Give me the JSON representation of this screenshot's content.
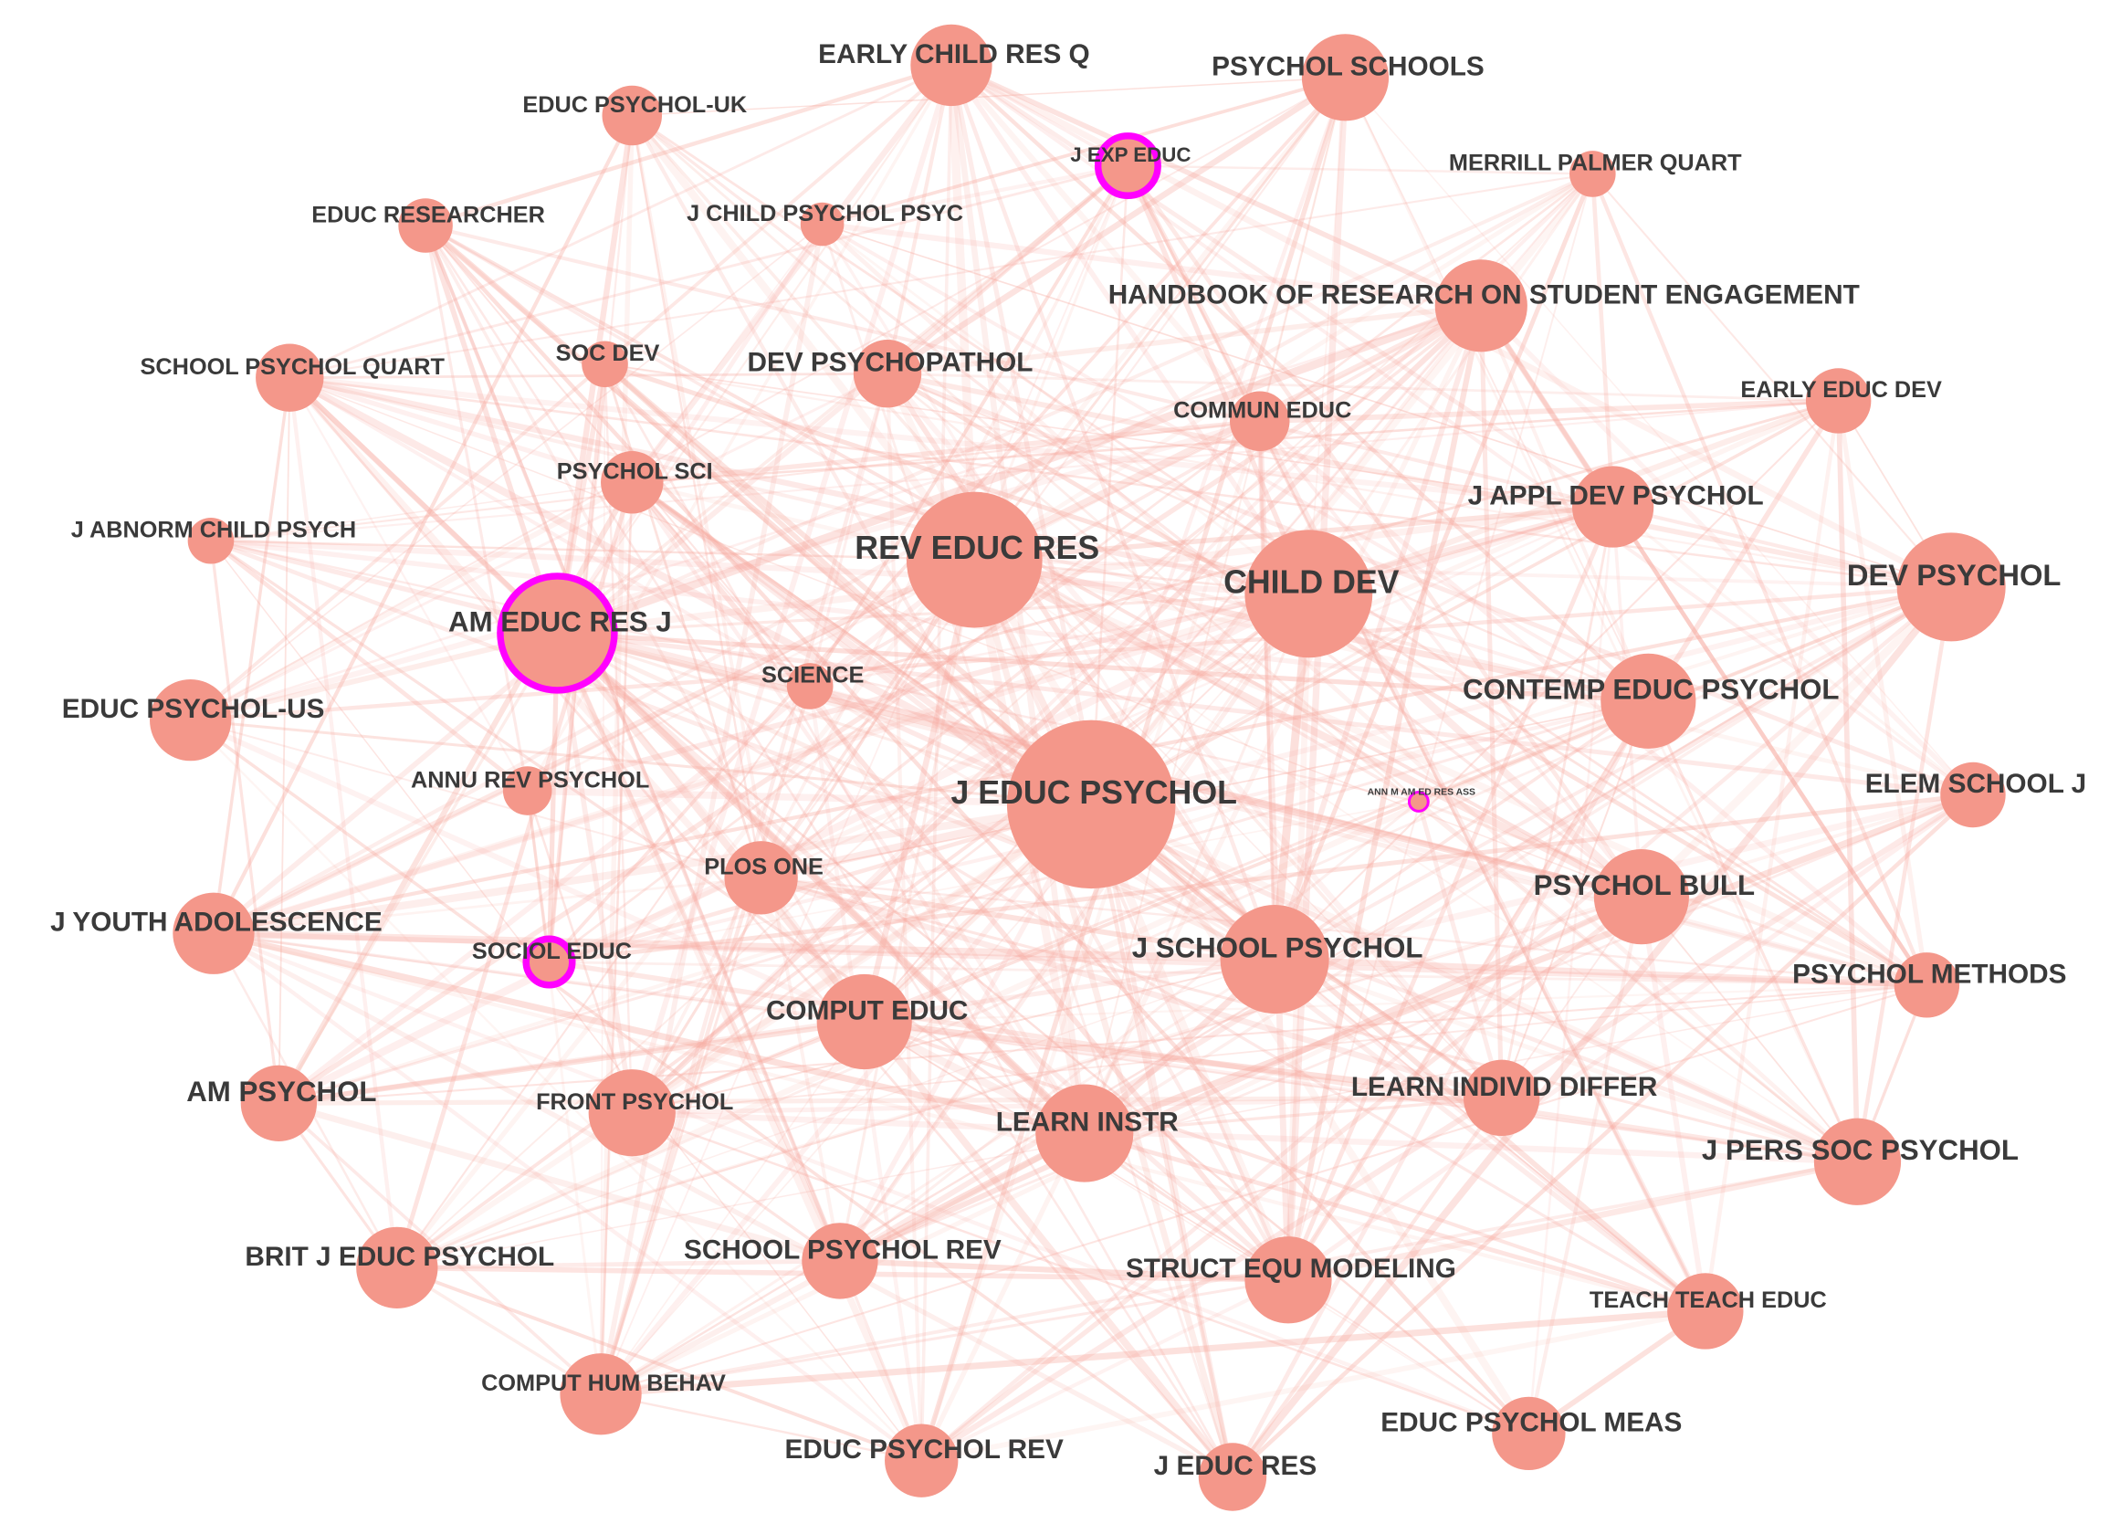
{
  "nodes": [
    {
      "label": "EARLY CHILD RES Q"
    },
    {
      "label": "PSYCHOL SCHOOLS"
    },
    {
      "label": "EDUC PSYCHOL-UK"
    },
    {
      "label": "J EXP EDUC"
    },
    {
      "label": "MERRILL PALMER QUART"
    },
    {
      "label": "EDUC RESEARCHER"
    },
    {
      "label": "J CHILD PSYCHOL PSYC"
    },
    {
      "label": "HANDBOOK OF RESEARCH ON STUDENT ENGAGEMENT"
    },
    {
      "label": "SCHOOL PSYCHOL QUART"
    },
    {
      "label": "SOC DEV"
    },
    {
      "label": "DEV PSYCHOPATHOL"
    },
    {
      "label": "COMMUN EDUC"
    },
    {
      "label": "EARLY EDUC DEV"
    },
    {
      "label": "PSYCHOL SCI"
    },
    {
      "label": "J APPL DEV PSYCHOL"
    },
    {
      "label": "J ABNORM CHILD PSYCH"
    },
    {
      "label": "REV EDUC RES"
    },
    {
      "label": "CHILD DEV"
    },
    {
      "label": "DEV PSYCHOL"
    },
    {
      "label": "AM EDUC RES J"
    },
    {
      "label": "SCIENCE"
    },
    {
      "label": "CONTEMP EDUC PSYCHOL"
    },
    {
      "label": "EDUC PSYCHOL-US"
    },
    {
      "label": "J EDUC PSYCHOL"
    },
    {
      "label": "ANN M AM ED RES ASS"
    },
    {
      "label": "ELEM SCHOOL J"
    },
    {
      "label": "ANNU REV PSYCHOL"
    },
    {
      "label": "PLOS ONE"
    },
    {
      "label": "PSYCHOL BULL"
    },
    {
      "label": "J YOUTH ADOLESCENCE"
    },
    {
      "label": "SOCIOL EDUC"
    },
    {
      "label": "J SCHOOL PSYCHOL"
    },
    {
      "label": "PSYCHOL METHODS"
    },
    {
      "label": "COMPUT EDUC"
    },
    {
      "label": "AM PSYCHOL"
    },
    {
      "label": "FRONT PSYCHOL"
    },
    {
      "label": "LEARN INSTR"
    },
    {
      "label": "LEARN INDIVID DIFFER"
    },
    {
      "label": "J PERS SOC PSYCHOL"
    },
    {
      "label": "BRIT J EDUC PSYCHOL"
    },
    {
      "label": "SCHOOL PSYCHOL REV"
    },
    {
      "label": "STRUCT EQU MODELING"
    },
    {
      "label": "TEACH TEACH EDUC"
    },
    {
      "label": "COMPUT HUM BEHAV"
    },
    {
      "label": "EDUC PSYCHOL REV"
    },
    {
      "label": "J EDUC RES"
    },
    {
      "label": "EDUC PSYCHOL MEAS"
    }
  ]
}
